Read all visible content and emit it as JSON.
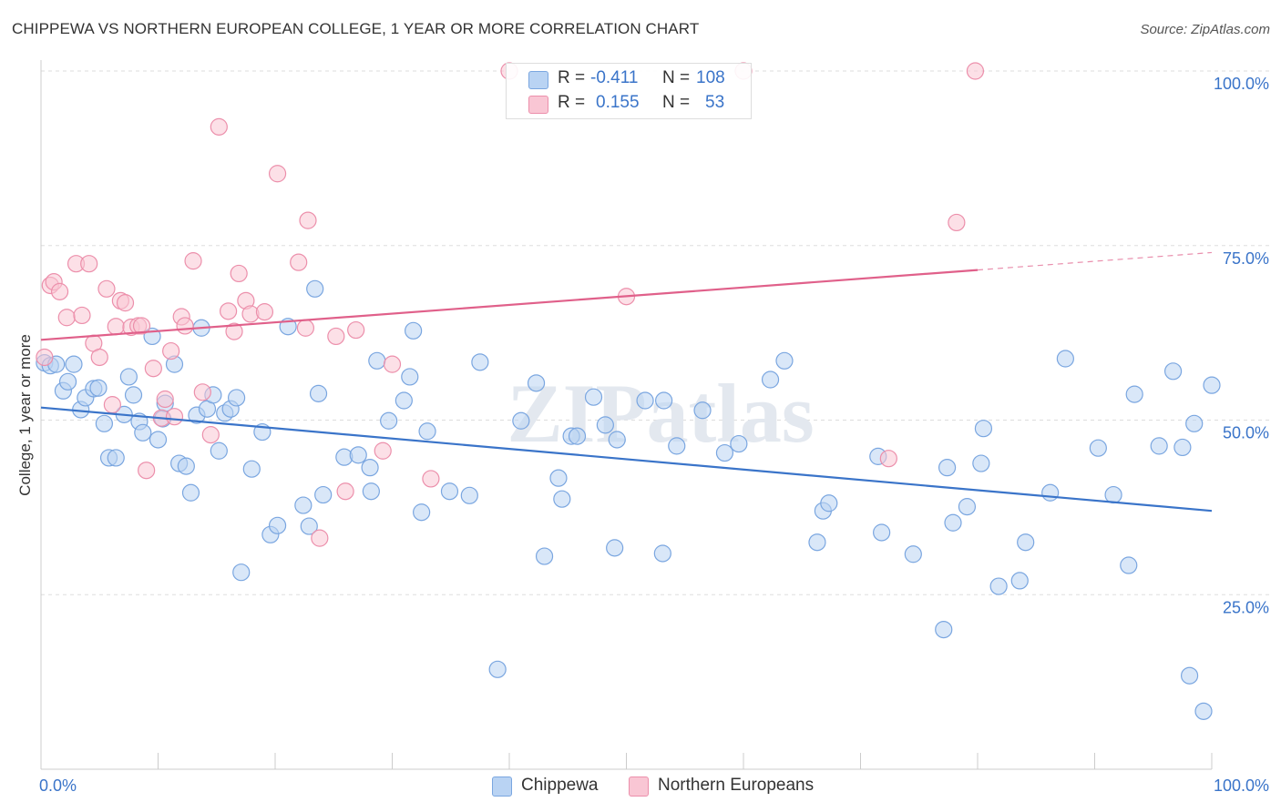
{
  "title": "CHIPPEWA VS NORTHERN EUROPEAN COLLEGE, 1 YEAR OR MORE CORRELATION CHART",
  "source": "Source: ZipAtlas.com",
  "watermark": "ZIPatlas",
  "legend": {
    "rows": [
      {
        "r_label": "R =",
        "r_value": "-0.411",
        "n_label": "N =",
        "n_value": "108",
        "color": "#b9d3f3",
        "border": "#7aa6e0"
      },
      {
        "r_label": "R =",
        "r_value": "0.155",
        "n_label": "N =",
        "n_value": "53",
        "color": "#f9c6d4",
        "border": "#ec8fab"
      }
    ]
  },
  "bottom_legend": [
    {
      "label": "Chippewa",
      "color": "#b9d3f3",
      "border": "#7aa6e0"
    },
    {
      "label": "Northern Europeans",
      "color": "#f9c6d4",
      "border": "#ec8fab"
    }
  ],
  "chart_data": {
    "type": "scatter",
    "title": "CHIPPEWA VS NORTHERN EUROPEAN COLLEGE, 1 YEAR OR MORE CORRELATION CHART",
    "ylabel": "College, 1 year or more",
    "xlabel": "",
    "xlim": [
      0,
      100
    ],
    "ylim": [
      0,
      100
    ],
    "x_tick_labels": [
      "0.0%",
      "100.0%"
    ],
    "y_tick_labels": [
      "25.0%",
      "50.0%",
      "75.0%",
      "100.0%"
    ],
    "y_ticks": [
      25,
      50,
      75,
      100
    ],
    "grid": true,
    "legend_position": "top-center",
    "series": [
      {
        "name": "Chippewa",
        "color": "#7aa6e0",
        "fill": "#b9d3f3",
        "trend": {
          "x0": 0,
          "y0": 51.8,
          "x1": 100,
          "y1": 37.0,
          "color": "#3a74c9"
        },
        "points": [
          [
            0.3,
            58.2
          ],
          [
            0.8,
            57.8
          ],
          [
            1.3,
            58.0
          ],
          [
            1.9,
            54.2
          ],
          [
            2.3,
            55.5
          ],
          [
            2.8,
            58.0
          ],
          [
            3.4,
            51.5
          ],
          [
            3.8,
            53.2
          ],
          [
            4.5,
            54.5
          ],
          [
            4.9,
            54.6
          ],
          [
            5.4,
            49.5
          ],
          [
            5.8,
            44.6
          ],
          [
            6.4,
            44.6
          ],
          [
            7.1,
            50.8
          ],
          [
            7.5,
            56.2
          ],
          [
            7.9,
            53.6
          ],
          [
            8.4,
            49.8
          ],
          [
            8.7,
            48.2
          ],
          [
            9.5,
            62.0
          ],
          [
            10.0,
            47.2
          ],
          [
            10.4,
            50.2
          ],
          [
            10.6,
            52.4
          ],
          [
            11.4,
            58.0
          ],
          [
            11.8,
            43.8
          ],
          [
            12.4,
            43.4
          ],
          [
            12.8,
            39.6
          ],
          [
            13.3,
            50.7
          ],
          [
            13.7,
            63.2
          ],
          [
            14.2,
            51.6
          ],
          [
            14.7,
            53.6
          ],
          [
            15.2,
            45.6
          ],
          [
            15.7,
            51.0
          ],
          [
            16.2,
            51.6
          ],
          [
            16.7,
            53.2
          ],
          [
            17.1,
            28.2
          ],
          [
            18.0,
            43.0
          ],
          [
            18.9,
            48.3
          ],
          [
            19.6,
            33.6
          ],
          [
            20.2,
            34.9
          ],
          [
            21.1,
            63.4
          ],
          [
            22.4,
            37.8
          ],
          [
            22.9,
            34.8
          ],
          [
            23.4,
            68.8
          ],
          [
            23.7,
            53.8
          ],
          [
            24.1,
            39.3
          ],
          [
            25.9,
            44.7
          ],
          [
            27.1,
            45.0
          ],
          [
            28.1,
            43.2
          ],
          [
            28.2,
            39.8
          ],
          [
            28.7,
            58.5
          ],
          [
            29.7,
            49.9
          ],
          [
            31.0,
            52.8
          ],
          [
            31.5,
            56.2
          ],
          [
            31.8,
            62.8
          ],
          [
            32.5,
            36.8
          ],
          [
            33.0,
            48.4
          ],
          [
            34.9,
            39.8
          ],
          [
            36.6,
            39.2
          ],
          [
            37.5,
            58.3
          ],
          [
            39.0,
            14.3
          ],
          [
            41.0,
            49.9
          ],
          [
            42.3,
            55.3
          ],
          [
            43.0,
            30.5
          ],
          [
            44.2,
            41.7
          ],
          [
            44.5,
            38.7
          ],
          [
            45.3,
            47.7
          ],
          [
            45.8,
            47.7
          ],
          [
            47.2,
            53.3
          ],
          [
            48.2,
            49.3
          ],
          [
            49.0,
            31.7
          ],
          [
            49.2,
            47.2
          ],
          [
            51.6,
            52.8
          ],
          [
            53.1,
            30.9
          ],
          [
            53.2,
            52.8
          ],
          [
            54.3,
            46.3
          ],
          [
            56.5,
            51.4
          ],
          [
            58.4,
            45.3
          ],
          [
            59.6,
            46.6
          ],
          [
            62.3,
            55.8
          ],
          [
            63.5,
            58.5
          ],
          [
            66.3,
            32.5
          ],
          [
            66.8,
            37.0
          ],
          [
            67.3,
            38.1
          ],
          [
            71.5,
            44.8
          ],
          [
            71.8,
            33.9
          ],
          [
            74.5,
            30.8
          ],
          [
            77.1,
            20.0
          ],
          [
            77.4,
            43.2
          ],
          [
            77.9,
            35.3
          ],
          [
            79.1,
            37.6
          ],
          [
            80.3,
            43.8
          ],
          [
            80.5,
            48.8
          ],
          [
            81.8,
            26.2
          ],
          [
            83.6,
            27.0
          ],
          [
            84.1,
            32.5
          ],
          [
            86.2,
            39.6
          ],
          [
            87.5,
            58.8
          ],
          [
            90.3,
            46.0
          ],
          [
            91.6,
            39.3
          ],
          [
            92.9,
            29.2
          ],
          [
            93.4,
            53.7
          ],
          [
            95.5,
            46.3
          ],
          [
            96.7,
            57.0
          ],
          [
            97.5,
            46.1
          ],
          [
            98.1,
            13.4
          ],
          [
            98.5,
            49.5
          ],
          [
            99.3,
            8.3
          ],
          [
            100.0,
            55.0
          ]
        ]
      },
      {
        "name": "Northern Europeans",
        "color": "#ec8fab",
        "fill": "#f9c6d4",
        "trend": {
          "x0": 0,
          "y0": 61.5,
          "x1": 80,
          "y1": 71.5,
          "dash_to_x": 100,
          "dash_to_y": 74.0,
          "color": "#e0608a"
        },
        "points": [
          [
            0.3,
            59.0
          ],
          [
            0.8,
            69.3
          ],
          [
            1.1,
            69.8
          ],
          [
            1.6,
            68.4
          ],
          [
            2.2,
            64.7
          ],
          [
            3.0,
            72.4
          ],
          [
            3.5,
            65.0
          ],
          [
            4.1,
            72.4
          ],
          [
            4.5,
            61.0
          ],
          [
            5.0,
            59.0
          ],
          [
            5.6,
            68.8
          ],
          [
            6.1,
            52.2
          ],
          [
            6.4,
            63.4
          ],
          [
            6.8,
            67.1
          ],
          [
            7.2,
            66.8
          ],
          [
            7.7,
            63.3
          ],
          [
            8.3,
            63.5
          ],
          [
            8.6,
            63.5
          ],
          [
            9.0,
            42.8
          ],
          [
            9.6,
            57.4
          ],
          [
            10.3,
            50.3
          ],
          [
            10.6,
            53.0
          ],
          [
            11.1,
            59.9
          ],
          [
            11.4,
            50.5
          ],
          [
            12.0,
            64.8
          ],
          [
            12.3,
            63.5
          ],
          [
            13.0,
            72.8
          ],
          [
            13.8,
            54.0
          ],
          [
            14.5,
            47.9
          ],
          [
            15.2,
            92.0
          ],
          [
            16.0,
            65.6
          ],
          [
            16.5,
            62.7
          ],
          [
            16.9,
            71.0
          ],
          [
            17.5,
            67.1
          ],
          [
            17.9,
            65.2
          ],
          [
            19.1,
            65.5
          ],
          [
            20.2,
            85.3
          ],
          [
            22.0,
            72.6
          ],
          [
            22.6,
            63.2
          ],
          [
            22.8,
            78.6
          ],
          [
            23.8,
            33.1
          ],
          [
            25.2,
            62.0
          ],
          [
            26.0,
            39.8
          ],
          [
            26.9,
            62.9
          ],
          [
            29.2,
            45.6
          ],
          [
            30.0,
            58.0
          ],
          [
            33.3,
            41.6
          ],
          [
            40.0,
            100.0
          ],
          [
            50.0,
            67.7
          ],
          [
            60.0,
            100.0
          ],
          [
            72.4,
            44.5
          ],
          [
            78.2,
            78.3
          ],
          [
            79.8,
            100.0
          ]
        ]
      }
    ]
  }
}
